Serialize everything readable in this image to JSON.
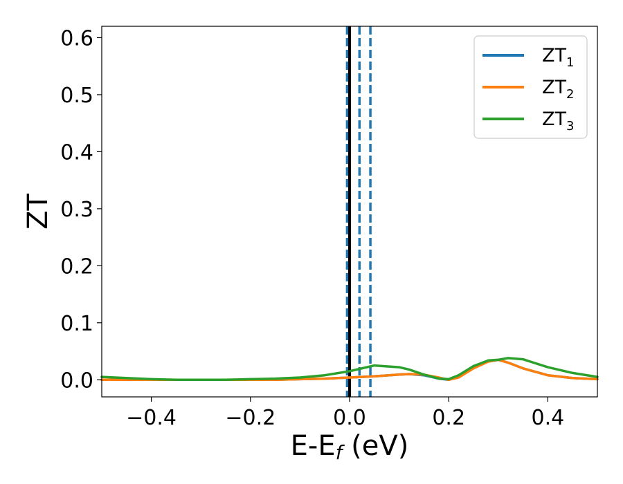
{
  "chart_data": {
    "type": "line",
    "title": "",
    "xlabel": "E-E",
    "xlabel_sub": "f",
    "xlabel_unit": " (eV)",
    "ylabel": "ZT",
    "xlim": [
      -0.5,
      0.5
    ],
    "ylim": [
      -0.03,
      0.62
    ],
    "x_ticks": [
      -0.4,
      -0.2,
      0.0,
      0.2,
      0.4
    ],
    "x_tick_labels": [
      "−0.4",
      "−0.2",
      "0.0",
      "0.2",
      "0.4"
    ],
    "y_ticks": [
      0.0,
      0.1,
      0.2,
      0.3,
      0.4,
      0.5,
      0.6
    ],
    "y_tick_labels": [
      "0.0",
      "0.1",
      "0.2",
      "0.3",
      "0.4",
      "0.5",
      "0.6"
    ],
    "grid": false,
    "legend_position": "top-right",
    "vertical_lines": [
      {
        "x": -0.005,
        "style": "dashed",
        "color": "#1f77b4"
      },
      {
        "x": 0.0,
        "style": "solid",
        "color": "#000000"
      },
      {
        "x": 0.02,
        "style": "dashed",
        "color": "#1f77b4"
      },
      {
        "x": 0.042,
        "style": "dashed",
        "color": "#1f77b4"
      }
    ],
    "x": [
      -0.5,
      -0.45,
      -0.4,
      -0.35,
      -0.3,
      -0.25,
      -0.2,
      -0.15,
      -0.1,
      -0.05,
      0.0,
      0.05,
      0.1,
      0.12,
      0.15,
      0.18,
      0.2,
      0.22,
      0.25,
      0.28,
      0.3,
      0.32,
      0.35,
      0.4,
      0.45,
      0.5
    ],
    "series": [
      {
        "name": "ZT",
        "name_sub": "1",
        "color": "#1f77b4",
        "values": [
          0.0,
          0.0,
          0.0,
          0.0,
          0.0,
          0.0,
          0.0,
          0.0,
          0.001,
          0.002,
          0.004,
          0.006,
          0.009,
          0.01,
          0.008,
          0.002,
          0.0,
          0.005,
          0.022,
          0.032,
          0.035,
          0.03,
          0.02,
          0.008,
          0.003,
          0.001
        ]
      },
      {
        "name": "ZT",
        "name_sub": "2",
        "color": "#ff7f0e",
        "values": [
          0.0,
          0.0,
          0.0,
          0.0,
          0.0,
          0.0,
          0.0,
          0.0,
          0.001,
          0.002,
          0.004,
          0.006,
          0.009,
          0.01,
          0.009,
          0.004,
          0.0,
          0.004,
          0.02,
          0.032,
          0.035,
          0.03,
          0.02,
          0.008,
          0.003,
          0.001
        ]
      },
      {
        "name": "ZT",
        "name_sub": "3",
        "color": "#2ca02c",
        "values": [
          0.005,
          0.003,
          0.001,
          0.0,
          0.0,
          0.0,
          0.001,
          0.002,
          0.004,
          0.008,
          0.015,
          0.025,
          0.022,
          0.018,
          0.009,
          0.002,
          0.001,
          0.008,
          0.024,
          0.034,
          0.035,
          0.038,
          0.036,
          0.022,
          0.012,
          0.005
        ]
      }
    ]
  }
}
